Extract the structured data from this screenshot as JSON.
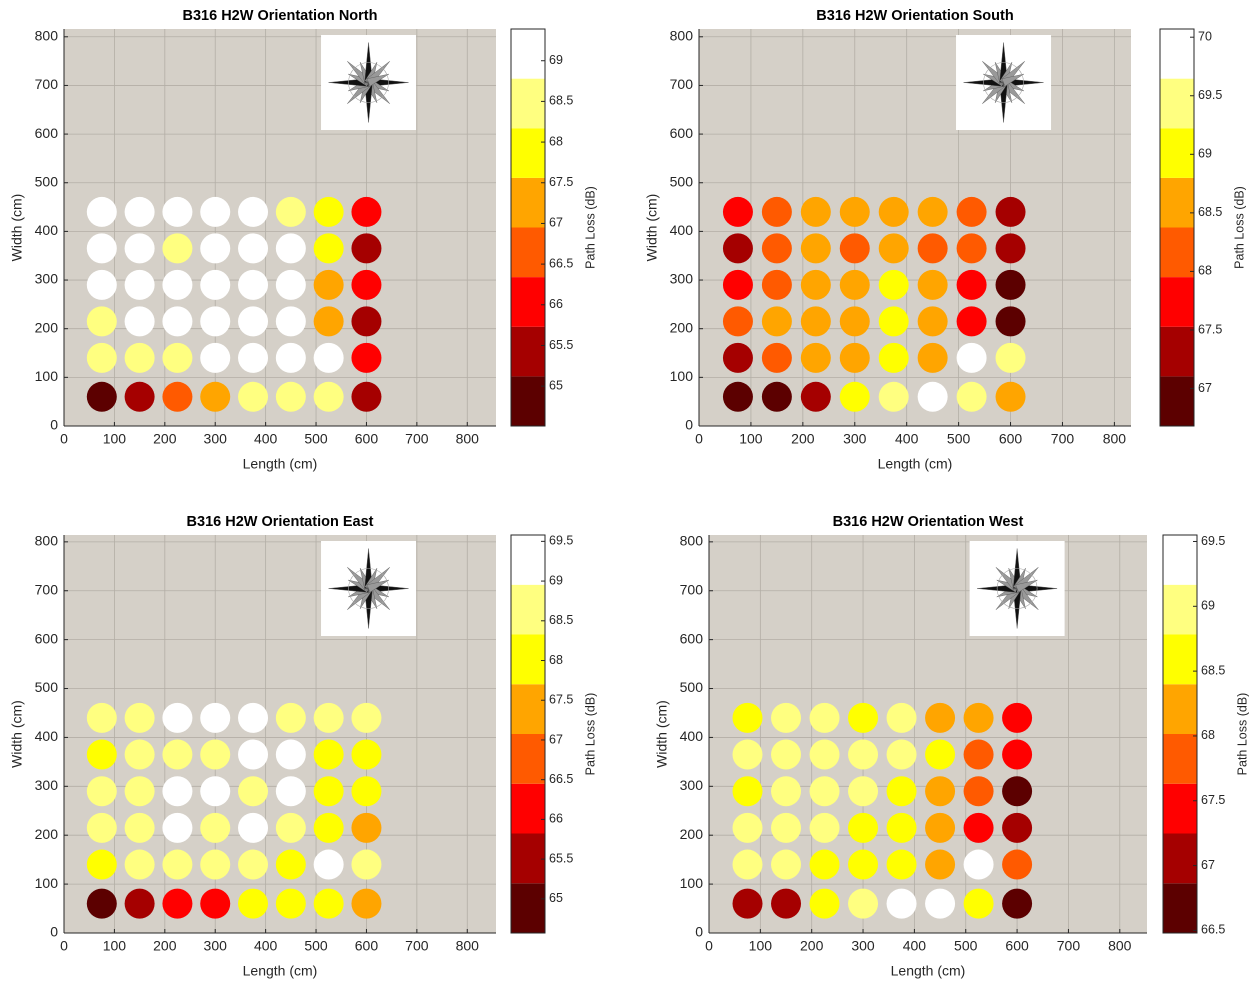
{
  "chart_data": [
    {
      "type": "scatter",
      "title": "B316 H2W Orientation North",
      "x_label": "Length (cm)",
      "y_label": "Width (cm)",
      "colorbar_label": "Path Loss (dB)",
      "x": [
        75,
        150,
        225,
        300,
        375,
        450,
        525,
        600
      ],
      "y": [
        440,
        365,
        290,
        215,
        140,
        60
      ],
      "values": [
        [
          69.09,
          69.09,
          69.09,
          69.09,
          69.09,
          68.48,
          67.87,
          66.04
        ],
        [
          69.09,
          69.09,
          68.48,
          69.09,
          69.09,
          69.09,
          67.87,
          65.43
        ],
        [
          69.09,
          69.09,
          69.09,
          69.09,
          69.09,
          69.09,
          67.26,
          66.04
        ],
        [
          68.48,
          69.09,
          69.09,
          69.09,
          69.09,
          69.09,
          67.26,
          65.43
        ],
        [
          68.48,
          68.48,
          68.48,
          69.09,
          69.09,
          69.09,
          69.09,
          66.04
        ],
        [
          64.82,
          65.43,
          66.65,
          67.26,
          68.48,
          68.48,
          68.48,
          65.43
        ]
      ],
      "xlim": [
        0,
        857
      ],
      "ylim": [
        0,
        816
      ],
      "xticks": [
        0,
        100,
        200,
        300,
        400,
        500,
        600,
        700,
        800
      ],
      "yticks": [
        0,
        100,
        200,
        300,
        400,
        500,
        600,
        700,
        800
      ],
      "clim": [
        64.51,
        69.39
      ],
      "cticks": [
        65,
        65.5,
        66,
        66.5,
        67,
        67.5,
        68,
        68.5,
        69
      ],
      "colors": [
        "#5c0000",
        "#a50000",
        "#ff0000",
        "#ff5a00",
        "#ffa500",
        "#ffff00",
        "#ffff80",
        "#ffffff"
      ],
      "grid": true
    },
    {
      "type": "scatter",
      "title": "B316 H2W Orientation South",
      "x_label": "Length (cm)",
      "y_label": "Width (cm)",
      "colorbar_label": "Path Loss (dB)",
      "x": [
        75,
        150,
        225,
        300,
        375,
        450,
        525,
        600
      ],
      "y": [
        440,
        365,
        290,
        215,
        140,
        60
      ],
      "values": [
        [
          67.74,
          68.16,
          68.59,
          68.59,
          68.59,
          68.59,
          68.16,
          67.32
        ],
        [
          67.32,
          68.16,
          68.59,
          68.16,
          68.59,
          68.16,
          68.16,
          67.32
        ],
        [
          67.74,
          68.16,
          68.59,
          68.59,
          69.01,
          68.59,
          67.74,
          66.89
        ],
        [
          68.16,
          68.59,
          68.59,
          68.59,
          69.01,
          68.59,
          67.74,
          66.89
        ],
        [
          67.32,
          68.16,
          68.59,
          68.59,
          69.01,
          68.59,
          69.86,
          69.44
        ],
        [
          66.89,
          66.89,
          67.32,
          69.01,
          69.44,
          69.86,
          69.44,
          68.59
        ]
      ],
      "xlim": [
        0,
        832
      ],
      "ylim": [
        0,
        816
      ],
      "xticks": [
        0,
        100,
        200,
        300,
        400,
        500,
        600,
        700,
        800
      ],
      "yticks": [
        0,
        100,
        200,
        300,
        400,
        500,
        600,
        700,
        800
      ],
      "clim": [
        66.68,
        70.07
      ],
      "cticks": [
        67,
        67.5,
        68,
        68.5,
        69,
        69.5,
        70
      ],
      "colors": [
        "#5c0000",
        "#a50000",
        "#ff0000",
        "#ff5a00",
        "#ffa500",
        "#ffff00",
        "#ffff80",
        "#ffffff"
      ],
      "grid": true
    },
    {
      "type": "scatter",
      "title": "B316 H2W Orientation East",
      "x_label": "Length (cm)",
      "y_label": "Width (cm)",
      "colorbar_label": "Path Loss (dB)",
      "x": [
        75,
        150,
        225,
        300,
        375,
        450,
        525,
        600
      ],
      "y": [
        440,
        365,
        290,
        215,
        140,
        60
      ],
      "values": [
        [
          68.64,
          68.64,
          69.27,
          69.27,
          69.27,
          68.64,
          68.64,
          68.64
        ],
        [
          68.01,
          68.64,
          68.64,
          68.64,
          69.27,
          69.27,
          68.01,
          68.01
        ],
        [
          68.64,
          68.64,
          69.27,
          69.27,
          68.64,
          69.27,
          68.01,
          68.01
        ],
        [
          68.64,
          68.64,
          69.27,
          68.64,
          69.27,
          68.64,
          68.01,
          67.39
        ],
        [
          68.01,
          68.64,
          68.64,
          68.64,
          68.64,
          68.01,
          69.27,
          68.64
        ],
        [
          64.88,
          65.51,
          66.13,
          66.13,
          68.01,
          68.01,
          68.01,
          67.39
        ]
      ],
      "xlim": [
        0,
        857
      ],
      "ylim": [
        0,
        814
      ],
      "xticks": [
        0,
        100,
        200,
        300,
        400,
        500,
        600,
        700,
        800
      ],
      "yticks": [
        0,
        100,
        200,
        300,
        400,
        500,
        600,
        700,
        800
      ],
      "clim": [
        64.57,
        69.58
      ],
      "cticks": [
        65,
        65.5,
        66,
        66.5,
        67,
        67.5,
        68,
        68.5,
        69,
        69.5
      ],
      "colors": [
        "#5c0000",
        "#a50000",
        "#ff0000",
        "#ff5a00",
        "#ffa500",
        "#ffff00",
        "#ffff80",
        "#ffffff"
      ],
      "grid": true
    },
    {
      "type": "scatter",
      "title": "B316 H2W Orientation West",
      "x_label": "Length (cm)",
      "y_label": "Width (cm)",
      "colorbar_label": "Path Loss (dB)",
      "x": [
        75,
        150,
        225,
        300,
        375,
        450,
        525,
        600
      ],
      "y": [
        440,
        365,
        290,
        215,
        140,
        60
      ],
      "values": [
        [
          68.59,
          68.98,
          68.98,
          68.59,
          68.98,
          68.21,
          68.21,
          67.44
        ],
        [
          68.98,
          68.98,
          68.98,
          68.98,
          68.98,
          68.59,
          67.82,
          67.44
        ],
        [
          68.59,
          68.98,
          68.98,
          68.98,
          68.59,
          68.21,
          67.82,
          66.67
        ],
        [
          68.98,
          68.98,
          68.98,
          68.59,
          68.59,
          68.21,
          67.44,
          67.06
        ],
        [
          68.98,
          68.98,
          68.59,
          68.59,
          68.59,
          68.21,
          69.36,
          67.82
        ],
        [
          67.06,
          67.06,
          68.59,
          68.98,
          69.36,
          69.36,
          68.59,
          66.67
        ]
      ],
      "xlim": [
        0,
        853
      ],
      "ylim": [
        0,
        814
      ],
      "xticks": [
        0,
        100,
        200,
        300,
        400,
        500,
        600,
        700,
        800
      ],
      "yticks": [
        0,
        100,
        200,
        300,
        400,
        500,
        600,
        700,
        800
      ],
      "clim": [
        66.48,
        69.55
      ],
      "cticks": [
        66.5,
        67,
        67.5,
        68,
        68.5,
        69,
        69.5
      ],
      "colors": [
        "#5c0000",
        "#a50000",
        "#ff0000",
        "#ff5a00",
        "#ffa500",
        "#ffff00",
        "#ffff80",
        "#ffffff"
      ],
      "grid": true
    }
  ]
}
